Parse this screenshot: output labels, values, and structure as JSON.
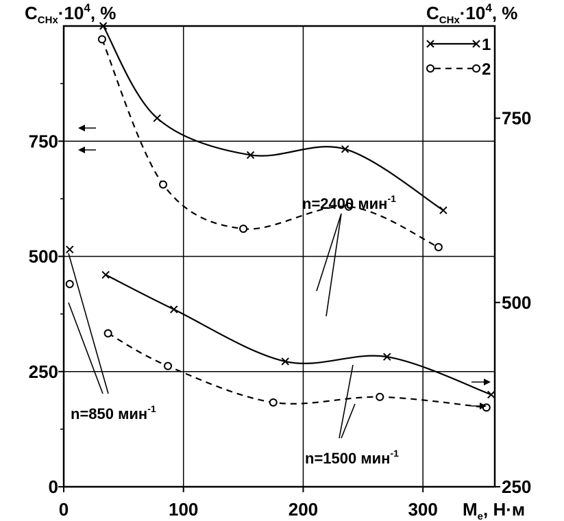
{
  "chart_data": {
    "type": "line",
    "left_axis": {
      "title_main": "C",
      "title_sub": "CHx",
      "title_mid": "·10",
      "title_sup": "4",
      "title_end": ", %",
      "ylim": [
        0,
        1000
      ],
      "ticks": [
        0,
        250,
        500,
        750
      ]
    },
    "right_axis": {
      "title_main": "C",
      "title_sub": "CHx",
      "title_mid": "·10",
      "title_sup": "4",
      "title_end": ", %",
      "ylim": [
        250,
        875
      ],
      "ticks": [
        250,
        500,
        750
      ]
    },
    "x_axis": {
      "title_main": "M",
      "title_sub": "e",
      "title_end": ", Н·м",
      "xlim": [
        0,
        360
      ],
      "ticks": [
        0,
        100,
        200,
        300
      ]
    },
    "grid": true,
    "legend": {
      "placement": "top-right",
      "entries": [
        {
          "label": "1",
          "marker": "x",
          "style": "solid"
        },
        {
          "label": "2",
          "marker": "o",
          "style": "dashed"
        }
      ]
    },
    "series": [
      {
        "legend": "1",
        "speed_label": "n=850 мин",
        "speed_sup": "-1",
        "axis": "left",
        "points": [
          [
            5,
            515
          ]
        ]
      },
      {
        "legend": "2",
        "speed_label": "n=850 мин",
        "speed_sup": "-1",
        "axis": "left",
        "points": [
          [
            5,
            440
          ]
        ]
      },
      {
        "legend": "1",
        "speed_label": "n=1500 мин",
        "speed_sup": "-1",
        "axis": "left",
        "points": [
          [
            35,
            460
          ],
          [
            92,
            385
          ],
          [
            185,
            272
          ],
          [
            270,
            282
          ],
          [
            357,
            200
          ]
        ]
      },
      {
        "legend": "2",
        "speed_label": "n=1500 мин",
        "speed_sup": "-1",
        "axis": "left",
        "points": [
          [
            37,
            333
          ],
          [
            87,
            262
          ],
          [
            175,
            183
          ],
          [
            264,
            195
          ],
          [
            353,
            172
          ]
        ]
      },
      {
        "legend": "1",
        "speed_label": "n=2400 мин",
        "speed_sup": "-1",
        "axis": "right",
        "points": [
          [
            33,
            875
          ],
          [
            78,
            750
          ],
          [
            156,
            700
          ],
          [
            235,
            708
          ],
          [
            317,
            625
          ]
        ]
      },
      {
        "legend": "2",
        "speed_label": "n=2400 мин",
        "speed_sup": "-1",
        "axis": "right",
        "points": [
          [
            32,
            857
          ],
          [
            83,
            660
          ],
          [
            150,
            600
          ],
          [
            238,
            630
          ],
          [
            313,
            575
          ]
        ]
      }
    ],
    "annotations": [
      {
        "text": "n=850 мин",
        "sup": "-1"
      },
      {
        "text": "n=1500 мин",
        "sup": "-1"
      },
      {
        "text": "n=2400 мин",
        "sup": "-1"
      }
    ]
  }
}
